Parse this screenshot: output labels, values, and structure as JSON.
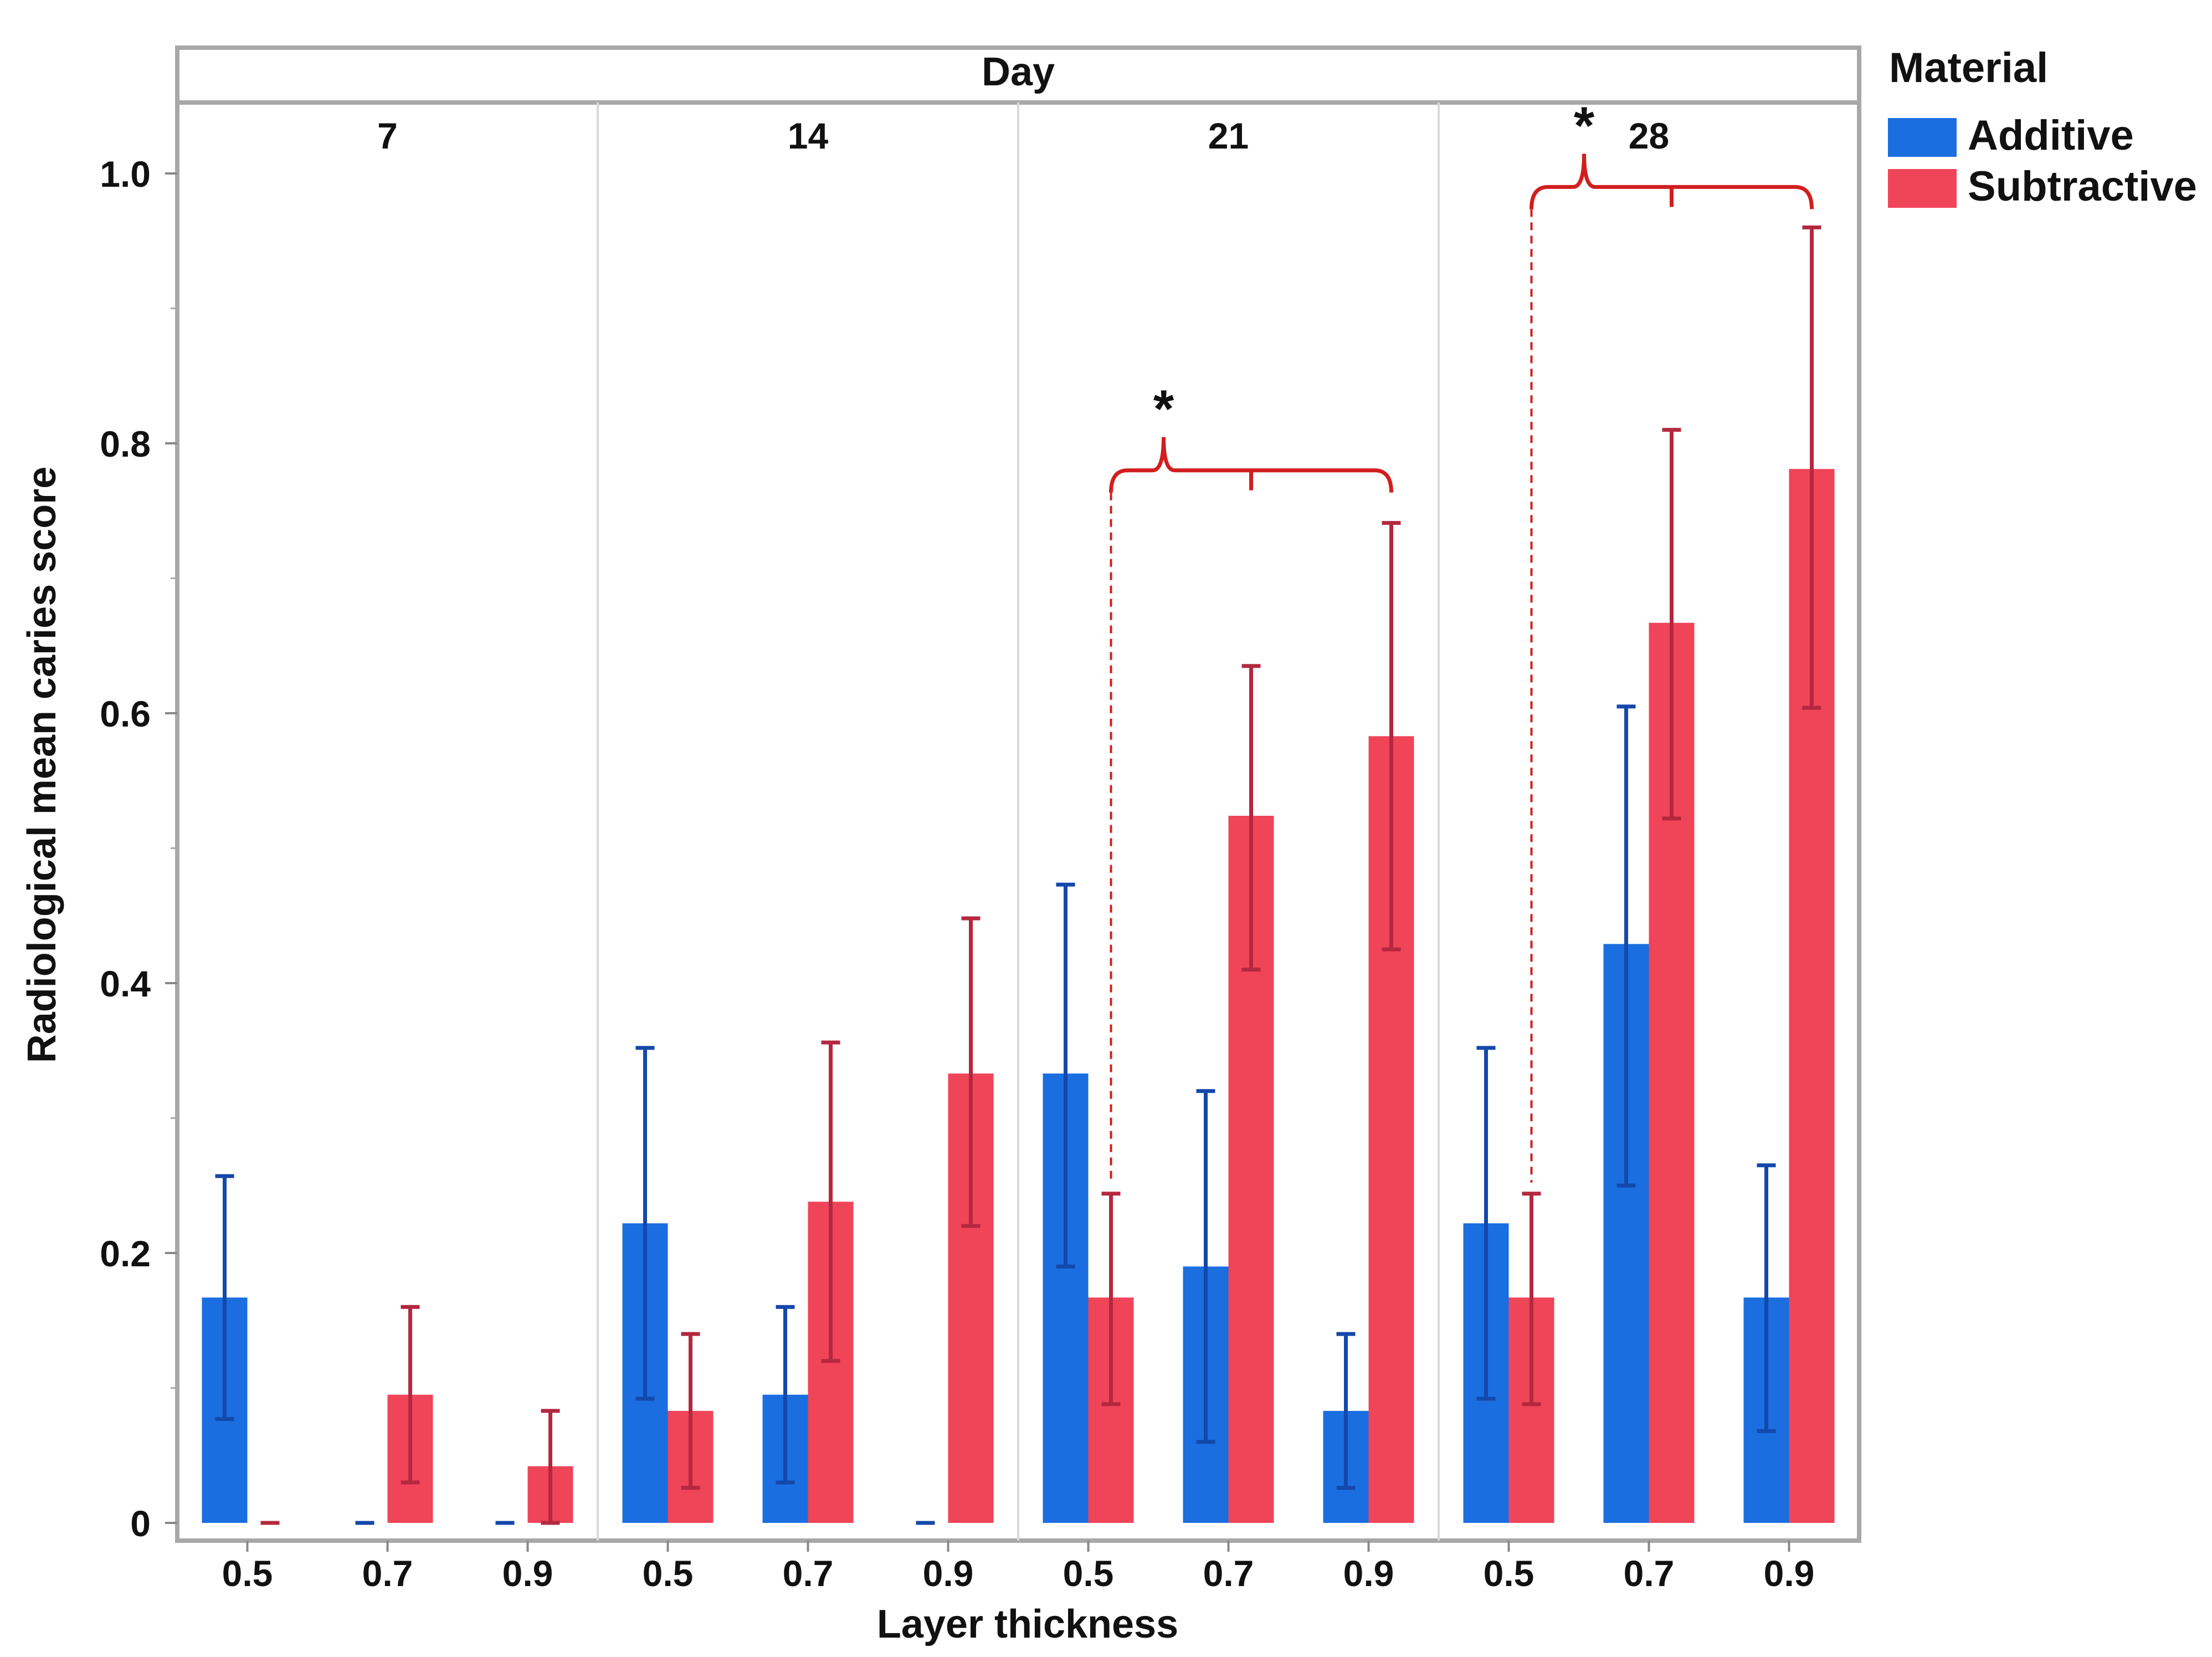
{
  "chart_data": {
    "type": "bar",
    "title": "",
    "facet_label": "Day",
    "facets": [
      "7",
      "14",
      "21",
      "28"
    ],
    "categories": [
      "0.5",
      "0.7",
      "0.9"
    ],
    "xlabel": "Layer thickness",
    "ylabel": "Radiological mean caries score",
    "ylim": [
      0,
      1.0
    ],
    "yticks": [
      {
        "value": 0,
        "label": "0"
      },
      {
        "value": 0.2,
        "label": "0.2"
      },
      {
        "value": 0.4,
        "label": "0.4"
      },
      {
        "value": 0.6,
        "label": "0.6"
      },
      {
        "value": 0.8,
        "label": "0.8"
      },
      {
        "value": 1.0,
        "label": "1.0"
      }
    ],
    "legend": {
      "title": "Material",
      "position": "right",
      "entries": [
        {
          "name": "Additive",
          "color": "#1a6ee0"
        },
        {
          "name": "Subtractive",
          "color": "#f04459"
        }
      ]
    },
    "series": [
      {
        "name": "Additive",
        "color": "#1a6ee0",
        "error_color": "#1448aa",
        "values": [
          [
            0.167,
            0.0,
            0.0
          ],
          [
            0.222,
            0.095,
            0.0
          ],
          [
            0.333,
            0.19,
            0.083
          ],
          [
            0.222,
            0.429,
            0.167
          ]
        ],
        "err_low": [
          [
            0.077,
            0.0,
            0.0
          ],
          [
            0.092,
            0.03,
            0.0
          ],
          [
            0.19,
            0.06,
            0.026
          ],
          [
            0.092,
            0.25,
            0.068
          ]
        ],
        "err_high": [
          [
            0.257,
            0.0,
            0.0
          ],
          [
            0.352,
            0.16,
            0.0
          ],
          [
            0.473,
            0.32,
            0.14
          ],
          [
            0.352,
            0.605,
            0.265
          ]
        ]
      },
      {
        "name": "Subtractive",
        "color": "#f04459",
        "error_color": "#b4283f",
        "values": [
          [
            0.0,
            0.095,
            0.042
          ],
          [
            0.083,
            0.238,
            0.333
          ],
          [
            0.167,
            0.524,
            0.583
          ],
          [
            0.167,
            0.667,
            0.781
          ]
        ],
        "err_low": [
          [
            0.0,
            0.03,
            0.0
          ],
          [
            0.026,
            0.12,
            0.22
          ],
          [
            0.088,
            0.41,
            0.425
          ],
          [
            0.088,
            0.522,
            0.604
          ]
        ],
        "err_high": [
          [
            0.0,
            0.16,
            0.083
          ],
          [
            0.14,
            0.356,
            0.448
          ],
          [
            0.244,
            0.635,
            0.741
          ],
          [
            0.244,
            0.81,
            0.96
          ]
        ]
      }
    ],
    "annotations": [
      {
        "text": "*",
        "facet": "21",
        "meaning": "significant difference between Subtractive 0.5 and 0.7/0.9",
        "from": "0.5",
        "to": "0.9",
        "bracket_level": 0.78
      },
      {
        "text": "*",
        "facet": "28",
        "meaning": "significant difference between Subtractive 0.5 and 0.7/0.9",
        "from": "0.5",
        "to": "0.9",
        "bracket_level": 0.99
      }
    ]
  }
}
